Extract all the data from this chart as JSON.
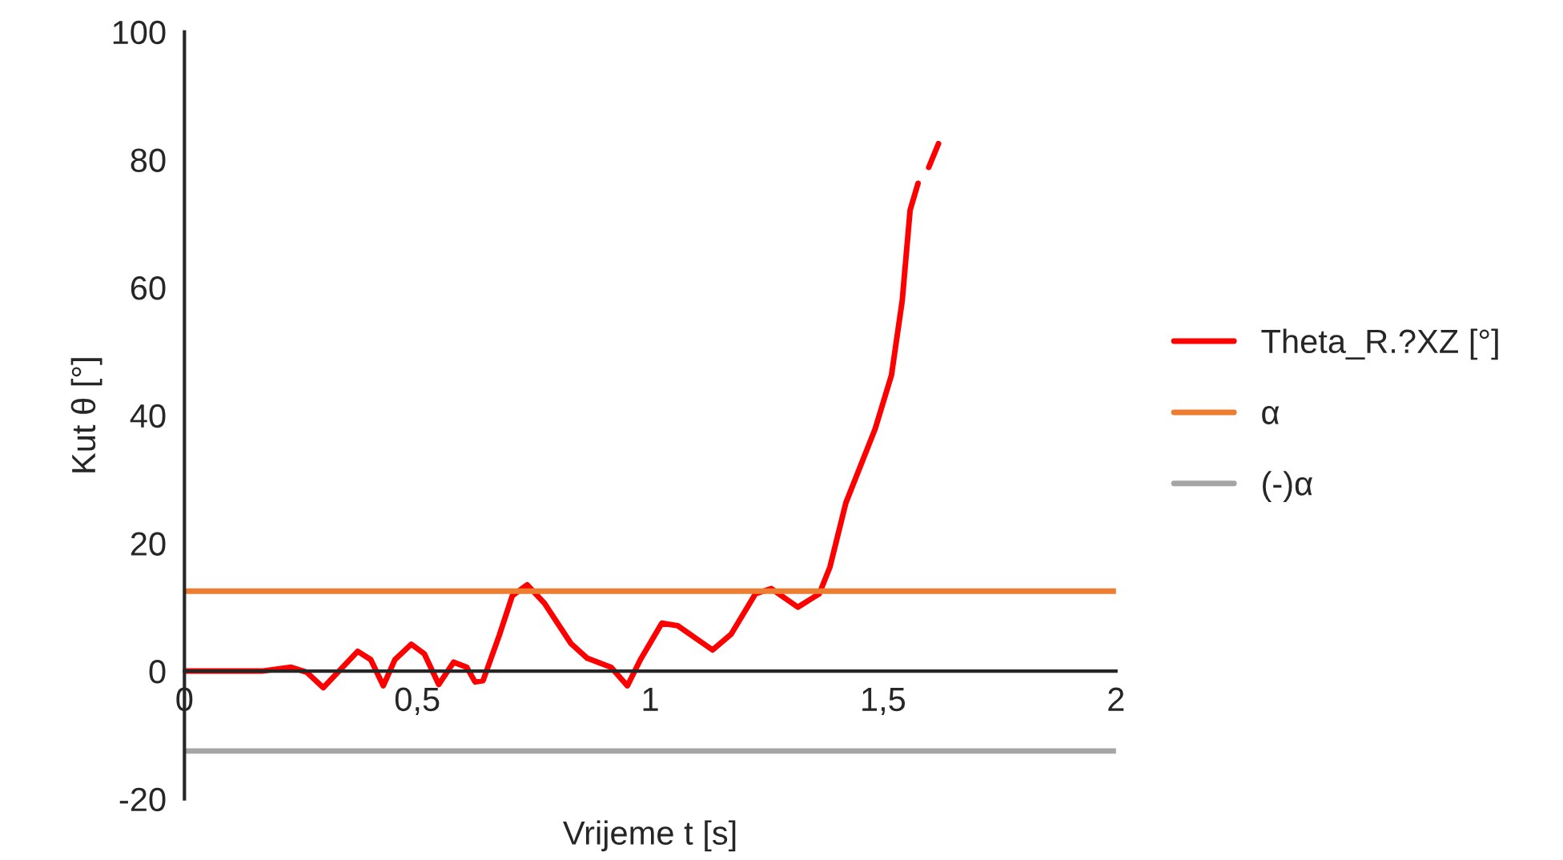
{
  "chart_data": {
    "type": "line",
    "xlabel": "Vrijeme t [s]",
    "ylabel": "Kut θ [°]",
    "xlim": [
      0,
      2
    ],
    "xticks": [
      0,
      {
        "value": 0.5,
        "label": "0,5"
      },
      1,
      {
        "value": 1.5,
        "label": "1,5"
      },
      2
    ],
    "ylim": [
      -20,
      100
    ],
    "yticks": [
      -20,
      0,
      20,
      40,
      60,
      80,
      100
    ],
    "grid": false,
    "legend": "right",
    "marker": "none",
    "line_style": "solid",
    "series": [
      {
        "name": "Theta_R.?XZ [°]",
        "color": "#ff0000",
        "x": [
          0,
          0.166,
          0.229,
          0.263,
          0.298,
          0.372,
          0.4,
          0.427,
          0.452,
          0.487,
          0.515,
          0.546,
          0.578,
          0.606,
          0.624,
          0.641,
          0.676,
          0.704,
          0.736,
          0.773,
          0.83,
          0.865,
          0.916,
          0.951,
          0.979,
          1.025,
          1.059,
          1.134,
          1.174,
          1.226,
          1.26,
          1.317,
          1.363,
          1.386,
          1.42,
          1.483,
          1.518,
          1.541,
          1.558,
          1.575,
          1.585,
          1.598,
          1.619
        ],
        "values": [
          0,
          0,
          0.6,
          -0.2,
          -2.6,
          3.1,
          1.8,
          -2.3,
          1.8,
          4.2,
          2.7,
          -2.1,
          1.4,
          0.6,
          -1.7,
          -1.5,
          5.6,
          11.8,
          13.5,
          10.6,
          4.3,
          2,
          0.6,
          -2.3,
          1.8,
          7.5,
          7.1,
          3.3,
          5.8,
          12.1,
          12.9,
          10,
          12.1,
          16.3,
          26.3,
          37.9,
          46.3,
          57.9,
          72.1,
          76.3,
          null,
          78.8,
          82.5
        ]
      },
      {
        "name": "α",
        "color": "#ed7d31",
        "x": [
          0,
          2
        ],
        "values": [
          12.5,
          12.5
        ]
      },
      {
        "name": "(-)α",
        "color": "#a5a5a5",
        "x": [
          0,
          2
        ],
        "values": [
          -12.5,
          -12.5
        ]
      }
    ]
  }
}
